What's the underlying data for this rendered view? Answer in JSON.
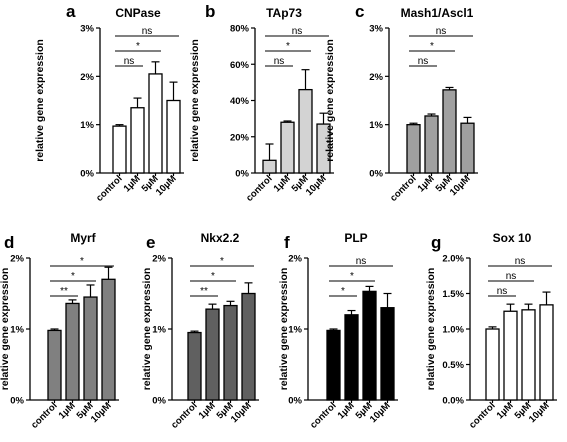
{
  "chart_data": [
    {
      "panel": "a",
      "title": "CNPase",
      "type": "bar",
      "ylabel": "relative gene expression",
      "categories": [
        "control",
        "1µM",
        "5µM",
        "10µM"
      ],
      "values": [
        0.97,
        1.35,
        2.05,
        1.5
      ],
      "errors": [
        0.03,
        0.2,
        0.25,
        0.38
      ],
      "ylim": [
        0,
        3
      ],
      "yticks": [
        "0%",
        "1%",
        "2%",
        "3%"
      ],
      "color": "#ffffff",
      "comparisons": [
        {
          "from": 0,
          "to": 1,
          "label": "ns"
        },
        {
          "from": 0,
          "to": 2,
          "label": "*"
        },
        {
          "from": 0,
          "to": 3,
          "label": "ns"
        }
      ]
    },
    {
      "panel": "b",
      "title": "TAp73",
      "type": "bar",
      "ylabel": "relative gene expression",
      "categories": [
        "control",
        "1µM",
        "5µM",
        "10µM"
      ],
      "values": [
        7,
        28,
        46,
        27
      ],
      "errors": [
        9,
        0.7,
        11,
        6
      ],
      "ylim": [
        0,
        80
      ],
      "yticks": [
        "0%",
        "20%",
        "40%",
        "60%",
        "80%"
      ],
      "color": "#d3d3d3",
      "comparisons": [
        {
          "from": 0,
          "to": 1,
          "label": "ns"
        },
        {
          "from": 0,
          "to": 2,
          "label": "*"
        },
        {
          "from": 0,
          "to": 3,
          "label": "ns"
        }
      ]
    },
    {
      "panel": "c",
      "title": "Mash1/Ascl1",
      "type": "bar",
      "ylabel": "relative gene expression",
      "categories": [
        "control",
        "1µM",
        "5µM",
        "10µM"
      ],
      "values": [
        1.0,
        1.18,
        1.72,
        1.03
      ],
      "errors": [
        0.03,
        0.04,
        0.05,
        0.12
      ],
      "ylim": [
        0,
        3
      ],
      "yticks": [
        "0%",
        "1%",
        "2%",
        "3%"
      ],
      "color": "#a0a0a0",
      "comparisons": [
        {
          "from": 0,
          "to": 1,
          "label": "ns"
        },
        {
          "from": 0,
          "to": 2,
          "label": "*"
        },
        {
          "from": 0,
          "to": 3,
          "label": "ns"
        }
      ]
    },
    {
      "panel": "d",
      "title": "Myrf",
      "type": "bar",
      "ylabel": "relative gene expression",
      "categories": [
        "control",
        "1µM",
        "5µM",
        "10µM"
      ],
      "values": [
        0.98,
        1.36,
        1.45,
        1.7
      ],
      "errors": [
        0.02,
        0.05,
        0.17,
        0.17
      ],
      "ylim": [
        0,
        2
      ],
      "yticks": [
        "0%",
        "1%",
        "2%"
      ],
      "color": "#808080",
      "comparisons": [
        {
          "from": 0,
          "to": 1,
          "label": "**"
        },
        {
          "from": 0,
          "to": 2,
          "label": "*"
        },
        {
          "from": 0,
          "to": 3,
          "label": "*"
        }
      ]
    },
    {
      "panel": "e",
      "title": "Nkx2.2",
      "type": "bar",
      "ylabel": "relative gene expression",
      "categories": [
        "control",
        "1µM",
        "5µM",
        "10µM"
      ],
      "values": [
        0.95,
        1.28,
        1.33,
        1.5
      ],
      "errors": [
        0.02,
        0.07,
        0.06,
        0.15
      ],
      "ylim": [
        0,
        2
      ],
      "yticks": [
        "0%",
        "1%",
        "2%"
      ],
      "color": "#606060",
      "comparisons": [
        {
          "from": 0,
          "to": 1,
          "label": "**"
        },
        {
          "from": 0,
          "to": 2,
          "label": "*"
        },
        {
          "from": 0,
          "to": 3,
          "label": "*"
        }
      ]
    },
    {
      "panel": "f",
      "title": "PLP",
      "type": "bar",
      "ylabel": "relative gene expression",
      "categories": [
        "control",
        "1µM",
        "5µM",
        "10µM"
      ],
      "values": [
        0.98,
        1.2,
        1.53,
        1.3
      ],
      "errors": [
        0.02,
        0.06,
        0.07,
        0.2
      ],
      "ylim": [
        0,
        2
      ],
      "yticks": [
        "0%",
        "1%",
        "2%"
      ],
      "color": "#000000",
      "comparisons": [
        {
          "from": 0,
          "to": 1,
          "label": "*"
        },
        {
          "from": 0,
          "to": 2,
          "label": "*"
        },
        {
          "from": 0,
          "to": 3,
          "label": "ns"
        }
      ]
    },
    {
      "panel": "g",
      "title": "Sox 10",
      "type": "bar",
      "ylabel": "relative gene expression",
      "categories": [
        "control",
        "1µM",
        "5µM",
        "10µM"
      ],
      "values": [
        1.0,
        1.25,
        1.27,
        1.34
      ],
      "errors": [
        0.03,
        0.1,
        0.08,
        0.18
      ],
      "ylim": [
        0,
        2
      ],
      "yticks": [
        "0.0%",
        "0.5%",
        "1.0%",
        "1.5%",
        "2.0%"
      ],
      "color": "#ffffff",
      "comparisons": [
        {
          "from": 0,
          "to": 1,
          "label": "ns"
        },
        {
          "from": 0,
          "to": 2,
          "label": "ns"
        },
        {
          "from": 0,
          "to": 3,
          "label": "ns"
        }
      ]
    }
  ]
}
